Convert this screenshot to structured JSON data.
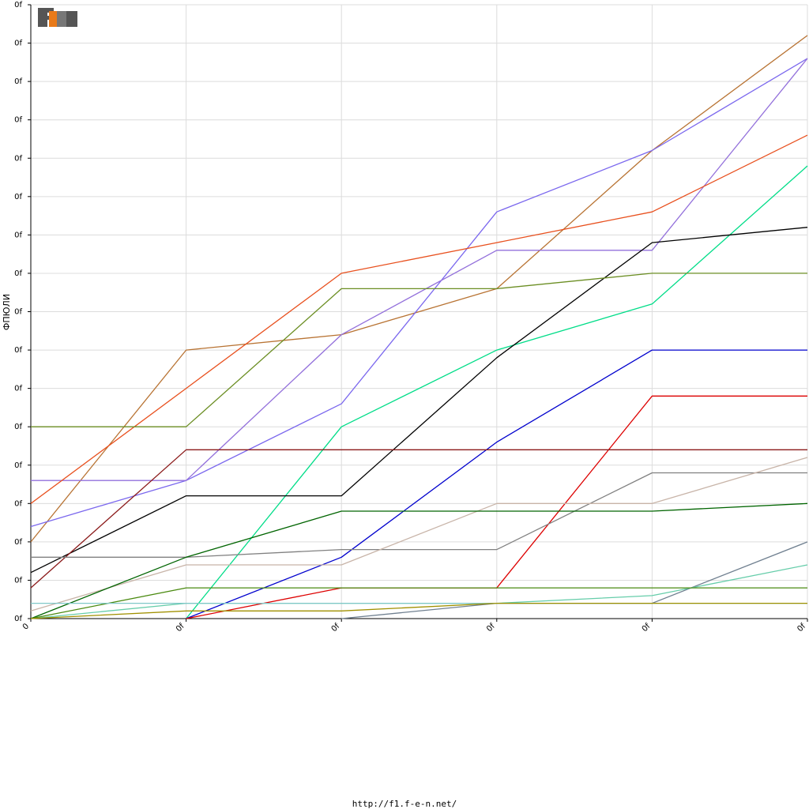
{
  "chart_data": {
    "type": "line",
    "title": "",
    "xlabel": "",
    "ylabel": "ФПЮЛИ",
    "x": [
      0,
      1,
      2,
      3,
      4,
      5
    ],
    "xtick_labels": [
      "0",
      "0f",
      "0f",
      "0f",
      "0f",
      "0f"
    ],
    "ytick_labels": [
      "0f",
      "0f",
      "0f",
      "0f",
      "0f",
      "0f",
      "0f",
      "0f",
      "0f",
      "0f",
      "0f",
      "0f",
      "0f",
      "0f",
      "0f",
      "0f",
      "0f"
    ],
    "xlim": [
      0,
      5
    ],
    "ylim": [
      0,
      16
    ],
    "grid": true,
    "legend": "none",
    "series": [
      {
        "color": "#b87333",
        "values": [
          2,
          7,
          7.4,
          8.6,
          12.2,
          15.2
        ]
      },
      {
        "color": "#7b68ee",
        "values": [
          2.4,
          3.6,
          5.6,
          10.6,
          12.2,
          14.6
        ]
      },
      {
        "color": "#9370db",
        "values": [
          3.6,
          3.6,
          7.4,
          9.6,
          9.6,
          14.6
        ]
      },
      {
        "color": "#e8501e",
        "values": [
          3,
          6,
          9,
          9.8,
          10.6,
          12.6
        ]
      },
      {
        "color": "#00dd88",
        "values": [
          null,
          0,
          5,
          7,
          8.2,
          11.8
        ]
      },
      {
        "color": "#000000",
        "values": [
          1.2,
          3.2,
          3.2,
          6.8,
          9.8,
          10.2
        ]
      },
      {
        "color": "#6b8e23",
        "values": [
          5,
          5,
          8.6,
          8.6,
          9,
          9
        ]
      },
      {
        "color": "#0000cd",
        "values": [
          null,
          0,
          1.6,
          4.6,
          7,
          7
        ]
      },
      {
        "color": "#dd0000",
        "values": [
          null,
          0,
          0.8,
          0.8,
          5.8,
          5.8
        ]
      },
      {
        "color": "#8b1a1a",
        "values": [
          0.8,
          4.4,
          4.4,
          4.4,
          4.4,
          4.4
        ]
      },
      {
        "color": "#808080",
        "values": [
          1.6,
          1.6,
          1.8,
          1.8,
          3.8,
          3.8
        ]
      },
      {
        "color": "#c8b4a8",
        "values": [
          0.2,
          1.4,
          1.4,
          3,
          3,
          4.2
        ]
      },
      {
        "color": "#006400",
        "values": [
          0,
          1.6,
          2.8,
          2.8,
          2.8,
          3
        ]
      },
      {
        "color": "#708090",
        "values": [
          null,
          null,
          0,
          0.4,
          0.4,
          2
        ]
      },
      {
        "color": "#66cdaa",
        "values": [
          0,
          0.4,
          0.4,
          0.4,
          0.6,
          1.4
        ]
      },
      {
        "color": "#4a8a10",
        "values": [
          0,
          0.8,
          0.8,
          0.8,
          0.8,
          0.8
        ]
      },
      {
        "color": "#80c8c8",
        "values": [
          0.4,
          0.4,
          0.4,
          0.4,
          0.4,
          0.4
        ]
      },
      {
        "color": "#a09000",
        "values": [
          0,
          0.2,
          0.2,
          0.4,
          0.4,
          0.4
        ]
      }
    ]
  },
  "logo": {
    "text": "F1EN",
    "color_dark": "#555555",
    "color_accent": "#e87a1a"
  },
  "footer": {
    "url": "http://f1.f-e-n.net/"
  }
}
